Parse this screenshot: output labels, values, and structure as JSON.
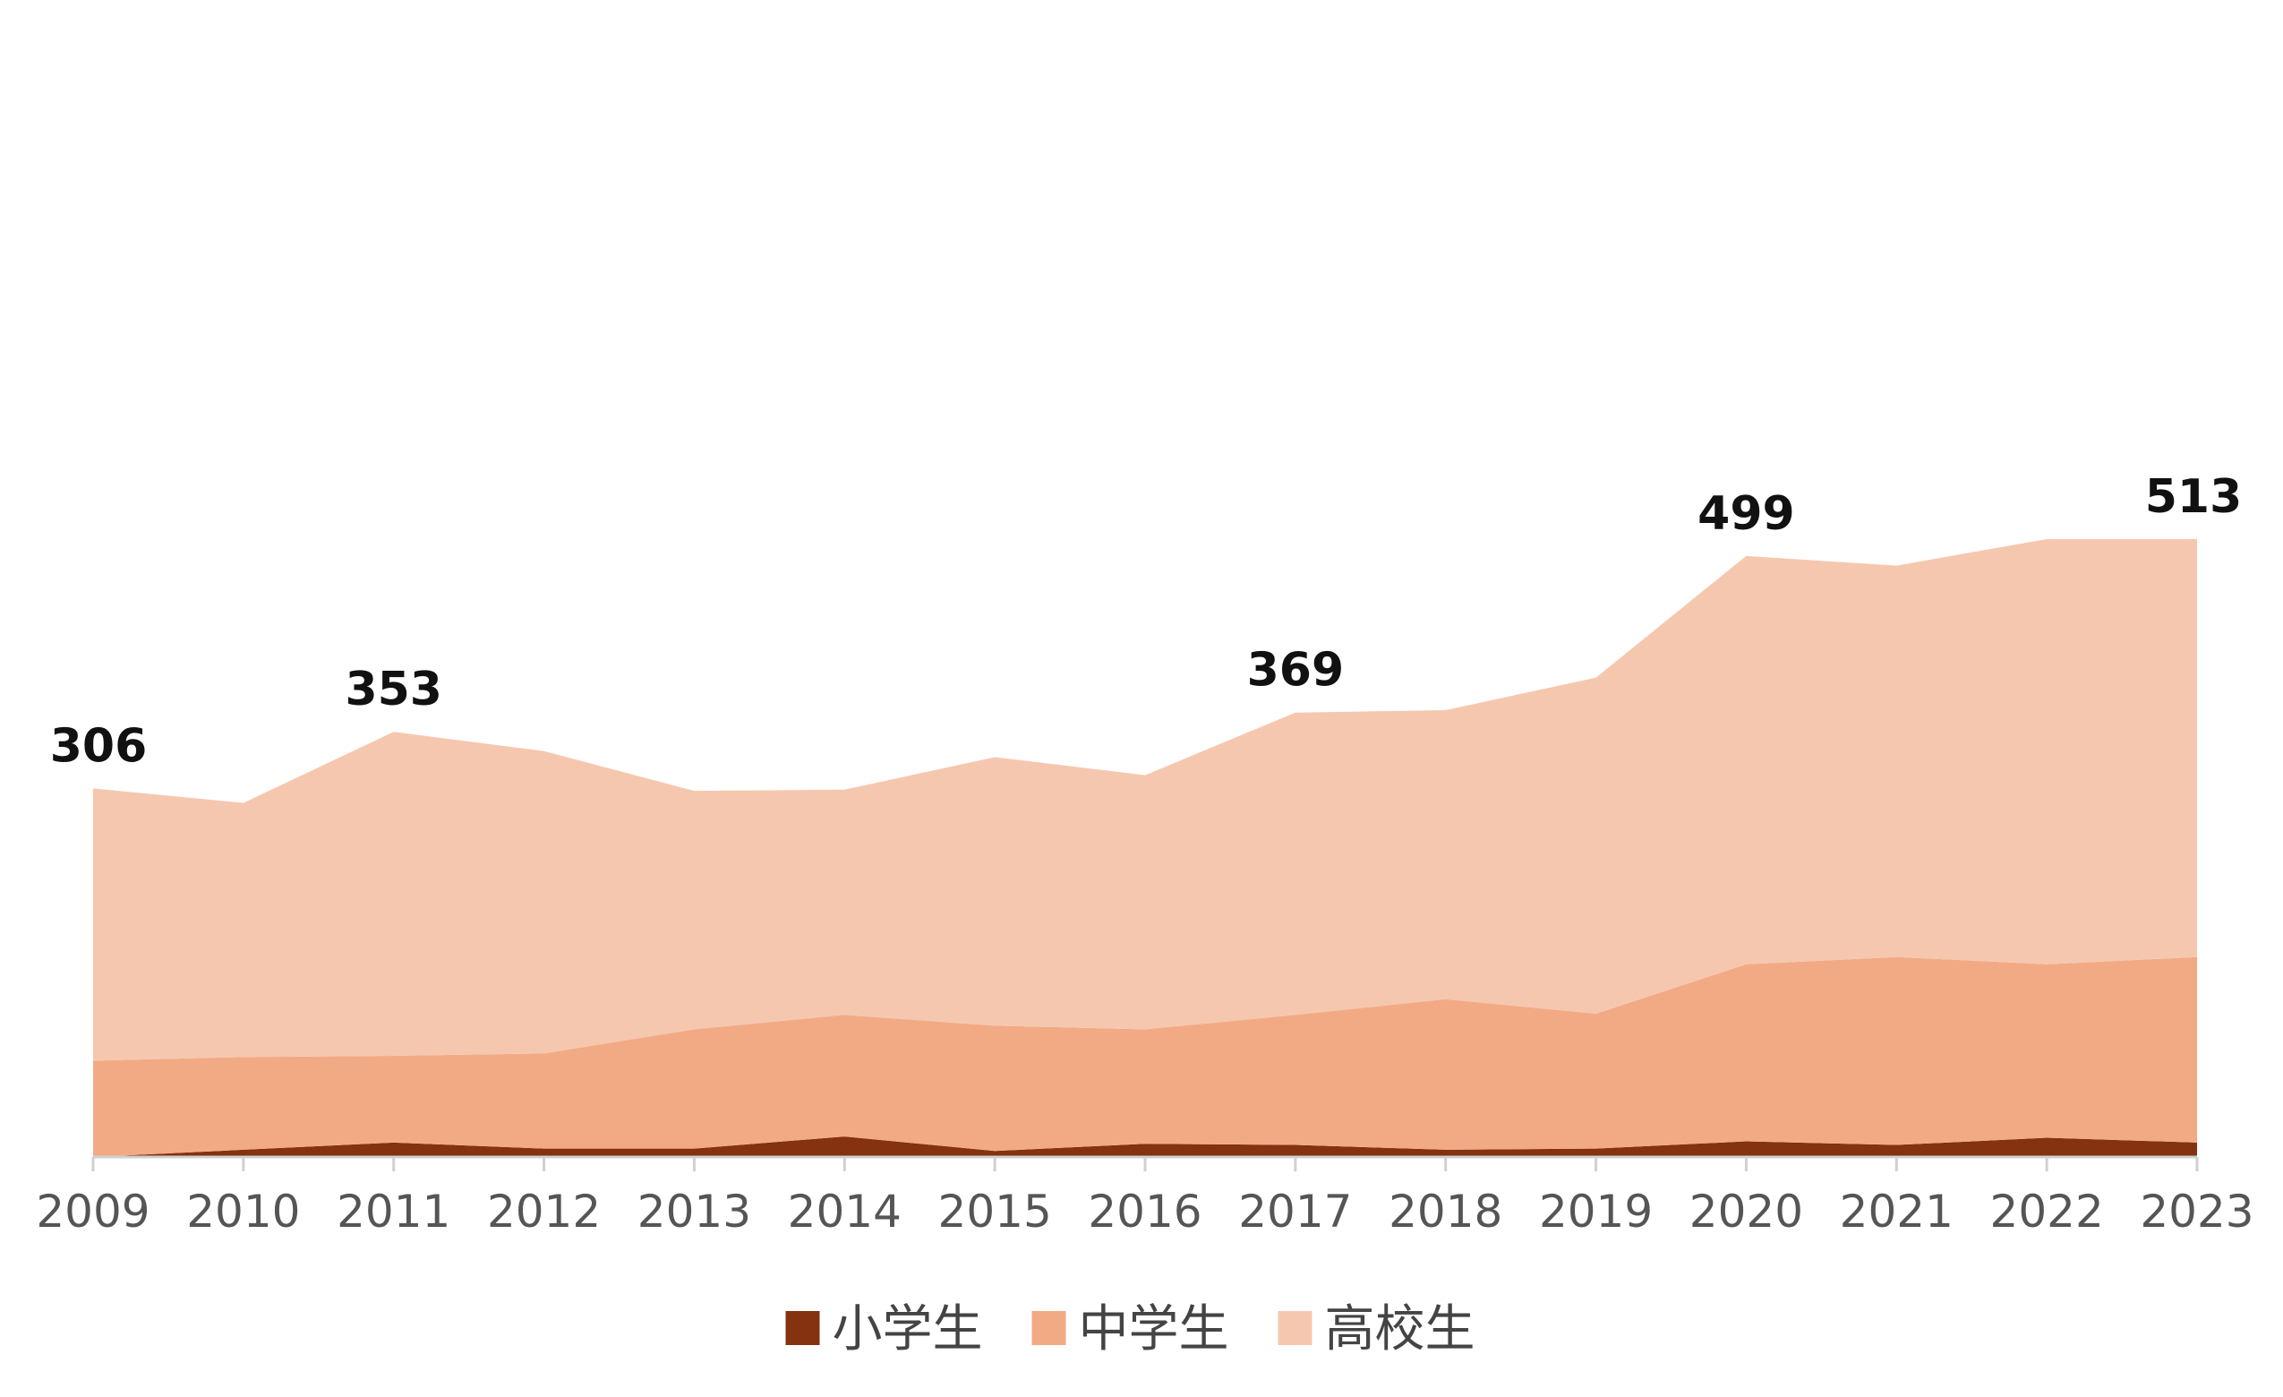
{
  "chart_data": {
    "type": "area",
    "stacked": true,
    "x": [
      "2009",
      "2010",
      "2011",
      "2012",
      "2013",
      "2014",
      "2015",
      "2016",
      "2017",
      "2018",
      "2019",
      "2020",
      "2021",
      "2022",
      "2023"
    ],
    "series": [
      {
        "name": "小学生",
        "color": "#843210",
        "values": [
          0,
          6,
          12,
          7,
          7,
          17,
          5,
          11,
          10,
          6,
          7,
          13,
          10,
          16,
          12
        ]
      },
      {
        "name": "中学生",
        "color": "#F2AA85",
        "values": [
          80,
          77,
          72,
          79,
          99,
          101,
          104,
          95,
          108,
          125,
          112,
          147,
          156,
          144,
          154
        ]
      },
      {
        "name": "高校生",
        "color": "#F6C7AF",
        "values": [
          226,
          211,
          269,
          251,
          198,
          187,
          223,
          211,
          251,
          240,
          279,
          339,
          325,
          353,
          347
        ]
      }
    ],
    "totals_labels": [
      {
        "x": "2009",
        "value": "306"
      },
      {
        "x": "2011",
        "value": "353"
      },
      {
        "x": "2017",
        "value": "369"
      },
      {
        "x": "2020",
        "value": "499"
      },
      {
        "x": "2023",
        "value": "513"
      }
    ],
    "ylim": [
      0,
      560
    ],
    "title": "",
    "xlabel": "",
    "ylabel": "",
    "grid": false,
    "legend_position": "bottom-center",
    "axis_color": "#D0D0D0"
  }
}
